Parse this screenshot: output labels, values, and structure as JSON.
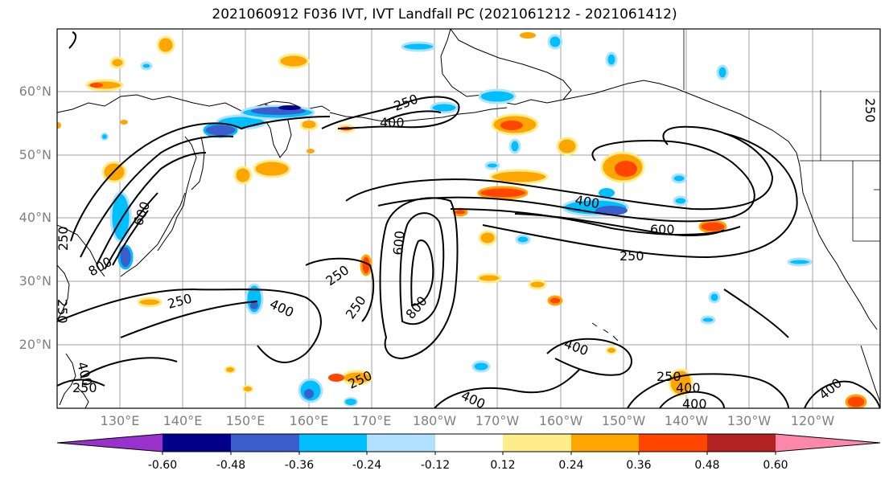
{
  "title": "2021060912 F036 IVT, IVT Landfall PC (2021061212 - 2021061412)",
  "lat_labels": [
    "60°N",
    "50°N",
    "40°N",
    "30°N",
    "20°N"
  ],
  "lon_labels": [
    "130°E",
    "140°E",
    "150°E",
    "160°E",
    "170°E",
    "180°W",
    "170°W",
    "160°W",
    "150°W",
    "140°W",
    "130°W",
    "120°W"
  ],
  "contour_labels": [
    "250",
    "400",
    "600",
    "800",
    "250",
    "400",
    "250",
    "400",
    "600",
    "250",
    "250",
    "400",
    "400",
    "250",
    "250",
    "250",
    "800",
    "600",
    "250",
    "400",
    "400",
    "250",
    "400",
    "250",
    "400"
  ],
  "colorbar": {
    "labels": [
      "-0.60",
      "-0.48",
      "-0.36",
      "-0.24",
      "-0.12",
      "0.12",
      "0.24",
      "0.36",
      "0.48",
      "0.60"
    ],
    "colors": [
      "#9932cc",
      "#00008b",
      "#3a5fcd",
      "#00bfff",
      "#b0e2ff",
      "#ffffff",
      "#ffec8b",
      "#ffa500",
      "#ff4500",
      "#b22222",
      "#ff88aa"
    ]
  },
  "colors": {
    "coast": "#000000",
    "grid": "#a0a0a0",
    "contour": "#000000",
    "pos_small": "#ffec8b",
    "pos_mid": "#ffa500",
    "pos_high": "#ff4500",
    "neg_small": "#b0e2ff",
    "neg_mid": "#00bfff",
    "neg_high": "#3a5fcd",
    "neg_max": "#00008b"
  }
}
